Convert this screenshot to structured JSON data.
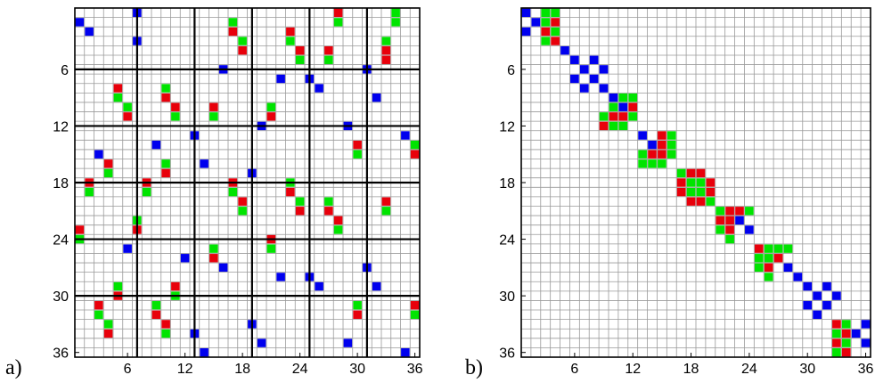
{
  "colors": {
    "red": "#e8000b",
    "green": "#00e400",
    "blue": "#0000ee",
    "grid": "#9a9a9a",
    "frame": "#000000",
    "block": "#000000"
  },
  "panels": [
    {
      "label": "a)",
      "n": 36,
      "ticks": [
        "6",
        "12",
        "18",
        "24",
        "30",
        "36"
      ],
      "block_lines": [
        6,
        12,
        18,
        24,
        30
      ],
      "cells": [
        [
          1,
          7,
          "b"
        ],
        [
          1,
          28,
          "r"
        ],
        [
          1,
          34,
          "g"
        ],
        [
          2,
          1,
          "b"
        ],
        [
          2,
          17,
          "g"
        ],
        [
          2,
          28,
          "g"
        ],
        [
          2,
          34,
          "g"
        ],
        [
          3,
          2,
          "b"
        ],
        [
          3,
          17,
          "r"
        ],
        [
          3,
          23,
          "r"
        ],
        [
          4,
          7,
          "b"
        ],
        [
          4,
          18,
          "g"
        ],
        [
          4,
          23,
          "g"
        ],
        [
          4,
          33,
          "g"
        ],
        [
          5,
          18,
          "r"
        ],
        [
          5,
          24,
          "r"
        ],
        [
          5,
          24,
          "r"
        ],
        [
          5,
          27,
          "r"
        ],
        [
          5,
          33,
          "r"
        ],
        [
          6,
          24,
          "g"
        ],
        [
          6,
          27,
          "g"
        ],
        [
          6,
          33,
          "r"
        ],
        [
          7,
          16,
          "b"
        ],
        [
          7,
          31,
          "b"
        ],
        [
          8,
          22,
          "b"
        ],
        [
          8,
          25,
          "b"
        ],
        [
          9,
          5,
          "r"
        ],
        [
          9,
          10,
          "g"
        ],
        [
          9,
          26,
          "b"
        ],
        [
          10,
          5,
          "g"
        ],
        [
          10,
          10,
          "r"
        ],
        [
          10,
          32,
          "b"
        ],
        [
          11,
          6,
          "g"
        ],
        [
          11,
          11,
          "r"
        ],
        [
          11,
          15,
          "r"
        ],
        [
          11,
          21,
          "g"
        ],
        [
          12,
          6,
          "r"
        ],
        [
          12,
          11,
          "g"
        ],
        [
          12,
          15,
          "g"
        ],
        [
          12,
          21,
          "r"
        ],
        [
          13,
          20,
          "b"
        ],
        [
          13,
          29,
          "b"
        ],
        [
          14,
          13,
          "b"
        ],
        [
          14,
          35,
          "b"
        ],
        [
          15,
          9,
          "b"
        ],
        [
          15,
          30,
          "r"
        ],
        [
          15,
          36,
          "g"
        ],
        [
          16,
          3,
          "b"
        ],
        [
          16,
          30,
          "g"
        ],
        [
          16,
          36,
          "r"
        ],
        [
          17,
          4,
          "r"
        ],
        [
          17,
          10,
          "g"
        ],
        [
          17,
          14,
          "b"
        ],
        [
          18,
          4,
          "g"
        ],
        [
          18,
          10,
          "r"
        ],
        [
          18,
          19,
          "b"
        ],
        [
          19,
          2,
          "r"
        ],
        [
          19,
          8,
          "r"
        ],
        [
          19,
          17,
          "r"
        ],
        [
          19,
          23,
          "g"
        ],
        [
          20,
          2,
          "g"
        ],
        [
          20,
          8,
          "g"
        ],
        [
          20,
          17,
          "g"
        ],
        [
          20,
          23,
          "r"
        ],
        [
          21,
          18,
          "r"
        ],
        [
          21,
          24,
          "g"
        ],
        [
          21,
          27,
          "g"
        ],
        [
          21,
          33,
          "r"
        ],
        [
          22,
          18,
          "g"
        ],
        [
          22,
          24,
          "r"
        ],
        [
          22,
          27,
          "r"
        ],
        [
          22,
          33,
          "g"
        ],
        [
          23,
          7,
          "g"
        ],
        [
          23,
          28,
          "r"
        ],
        [
          24,
          1,
          "r"
        ],
        [
          24,
          7,
          "r"
        ],
        [
          24,
          28,
          "g"
        ],
        [
          25,
          1,
          "g"
        ],
        [
          25,
          21,
          "r"
        ],
        [
          26,
          6,
          "b"
        ],
        [
          26,
          15,
          "g"
        ],
        [
          26,
          21,
          "g"
        ],
        [
          27,
          12,
          "b"
        ],
        [
          27,
          15,
          "r"
        ],
        [
          28,
          16,
          "b"
        ],
        [
          28,
          31,
          "b"
        ],
        [
          29,
          22,
          "b"
        ],
        [
          29,
          25,
          "b"
        ],
        [
          30,
          5,
          "g"
        ],
        [
          30,
          11,
          "r"
        ],
        [
          30,
          26,
          "b"
        ],
        [
          30,
          32,
          "b"
        ],
        [
          31,
          5,
          "r"
        ],
        [
          31,
          11,
          "g"
        ],
        [
          32,
          3,
          "r"
        ],
        [
          32,
          9,
          "g"
        ],
        [
          32,
          30,
          "g"
        ],
        [
          32,
          36,
          "r"
        ],
        [
          33,
          3,
          "g"
        ],
        [
          33,
          9,
          "r"
        ],
        [
          33,
          30,
          "r"
        ],
        [
          33,
          36,
          "g"
        ],
        [
          34,
          4,
          "g"
        ],
        [
          34,
          10,
          "r"
        ],
        [
          34,
          19,
          "b"
        ],
        [
          35,
          4,
          "r"
        ],
        [
          35,
          10,
          "g"
        ],
        [
          35,
          13,
          "b"
        ],
        [
          36,
          20,
          "b"
        ],
        [
          36,
          29,
          "b"
        ],
        [
          37,
          14,
          "b"
        ],
        [
          37,
          35,
          "b"
        ]
      ]
    },
    {
      "label": "b)",
      "n": 36,
      "ticks": [
        "6",
        "12",
        "18",
        "24",
        "30",
        "36"
      ],
      "block_lines": [],
      "cells": [
        [
          1,
          1,
          "b"
        ],
        [
          1,
          3,
          "g"
        ],
        [
          1,
          4,
          "g"
        ],
        [
          2,
          2,
          "b"
        ],
        [
          2,
          3,
          "g"
        ],
        [
          2,
          4,
          "r"
        ],
        [
          3,
          1,
          "b"
        ],
        [
          3,
          3,
          "r"
        ],
        [
          3,
          4,
          "g"
        ],
        [
          4,
          3,
          "g"
        ],
        [
          4,
          4,
          "r"
        ],
        [
          5,
          5,
          "b"
        ],
        [
          6,
          6,
          "b"
        ],
        [
          6,
          8,
          "b"
        ],
        [
          7,
          7,
          "b"
        ],
        [
          7,
          9,
          "b"
        ],
        [
          8,
          6,
          "b"
        ],
        [
          8,
          8,
          "b"
        ],
        [
          9,
          7,
          "b"
        ],
        [
          9,
          9,
          "b"
        ],
        [
          10,
          10,
          "b"
        ],
        [
          10,
          11,
          "g"
        ],
        [
          10,
          12,
          "g"
        ],
        [
          11,
          10,
          "g"
        ],
        [
          11,
          11,
          "b"
        ],
        [
          11,
          12,
          "r"
        ],
        [
          12,
          9,
          "g"
        ],
        [
          12,
          10,
          "r"
        ],
        [
          12,
          11,
          "r"
        ],
        [
          12,
          12,
          "g"
        ],
        [
          13,
          9,
          "r"
        ],
        [
          13,
          10,
          "g"
        ],
        [
          13,
          11,
          "g"
        ],
        [
          14,
          13,
          "b"
        ],
        [
          14,
          15,
          "r"
        ],
        [
          14,
          16,
          "g"
        ],
        [
          15,
          14,
          "b"
        ],
        [
          15,
          15,
          "r"
        ],
        [
          15,
          16,
          "g"
        ],
        [
          16,
          13,
          "g"
        ],
        [
          16,
          14,
          "r"
        ],
        [
          16,
          15,
          "r"
        ],
        [
          16,
          16,
          "g"
        ],
        [
          17,
          13,
          "g"
        ],
        [
          17,
          14,
          "g"
        ],
        [
          17,
          15,
          "g"
        ],
        [
          18,
          17,
          "g"
        ],
        [
          18,
          18,
          "r"
        ],
        [
          18,
          19,
          "r"
        ],
        [
          19,
          17,
          "r"
        ],
        [
          19,
          18,
          "g"
        ],
        [
          19,
          19,
          "g"
        ],
        [
          19,
          20,
          "r"
        ],
        [
          20,
          17,
          "r"
        ],
        [
          20,
          18,
          "g"
        ],
        [
          20,
          19,
          "g"
        ],
        [
          20,
          20,
          "r"
        ],
        [
          21,
          18,
          "r"
        ],
        [
          21,
          19,
          "r"
        ],
        [
          21,
          20,
          "g"
        ],
        [
          22,
          21,
          "g"
        ],
        [
          22,
          22,
          "r"
        ],
        [
          22,
          23,
          "r"
        ],
        [
          22,
          24,
          "g"
        ],
        [
          23,
          21,
          "r"
        ],
        [
          23,
          22,
          "r"
        ],
        [
          23,
          23,
          "b"
        ],
        [
          24,
          21,
          "g"
        ],
        [
          24,
          22,
          "r"
        ],
        [
          24,
          24,
          "b"
        ],
        [
          25,
          22,
          "g"
        ],
        [
          26,
          25,
          "r"
        ],
        [
          26,
          26,
          "g"
        ],
        [
          26,
          27,
          "g"
        ],
        [
          26,
          28,
          "g"
        ],
        [
          27,
          25,
          "g"
        ],
        [
          27,
          26,
          "g"
        ],
        [
          27,
          27,
          "r"
        ],
        [
          28,
          25,
          "g"
        ],
        [
          28,
          26,
          "r"
        ],
        [
          28,
          28,
          "b"
        ],
        [
          29,
          26,
          "g"
        ],
        [
          29,
          29,
          "b"
        ],
        [
          30,
          30,
          "b"
        ],
        [
          30,
          32,
          "b"
        ],
        [
          31,
          31,
          "b"
        ],
        [
          31,
          33,
          "b"
        ],
        [
          32,
          30,
          "b"
        ],
        [
          32,
          32,
          "b"
        ],
        [
          33,
          31,
          "b"
        ],
        [
          34,
          33,
          "r"
        ],
        [
          34,
          34,
          "g"
        ],
        [
          34,
          36,
          "b"
        ],
        [
          35,
          33,
          "g"
        ],
        [
          35,
          34,
          "r"
        ],
        [
          35,
          35,
          "b"
        ],
        [
          36,
          33,
          "r"
        ],
        [
          36,
          34,
          "g"
        ],
        [
          36,
          36,
          "b"
        ],
        [
          37,
          33,
          "g"
        ],
        [
          37,
          34,
          "r"
        ]
      ]
    }
  ]
}
